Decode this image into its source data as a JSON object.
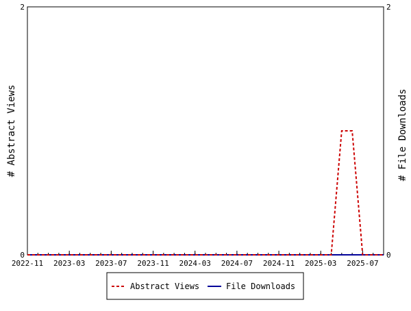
{
  "chart_data": {
    "type": "line",
    "x_axis": {
      "tick_labels": [
        "2022-11",
        "2023-03",
        "2023-07",
        "2023-11",
        "2024-03",
        "2024-07",
        "2024-11",
        "2025-03",
        "2025-07"
      ],
      "range": [
        "2022-11",
        "2025-09"
      ]
    },
    "y_left": {
      "label": "# Abstract Views",
      "range": [
        0,
        2
      ],
      "ticks": [
        "0",
        "2"
      ]
    },
    "y_right": {
      "label": "# File Downloads",
      "range": [
        0,
        2
      ],
      "ticks": [
        "0",
        "2"
      ]
    },
    "grid": false,
    "legend_placement": "bottom-center",
    "series": [
      {
        "name": "Abstract Views",
        "axis": "left",
        "style": "dashed",
        "color": "#cc0000",
        "x": [
          "2022-11",
          "2022-12",
          "2023-01",
          "2023-02",
          "2023-03",
          "2023-04",
          "2023-05",
          "2023-06",
          "2023-07",
          "2023-08",
          "2023-09",
          "2023-10",
          "2023-11",
          "2023-12",
          "2024-01",
          "2024-02",
          "2024-03",
          "2024-04",
          "2024-05",
          "2024-06",
          "2024-07",
          "2024-08",
          "2024-09",
          "2024-10",
          "2024-11",
          "2024-12",
          "2025-01",
          "2025-02",
          "2025-03",
          "2025-04",
          "2025-05",
          "2025-06",
          "2025-07",
          "2025-08",
          "2025-09"
        ],
        "y": [
          0,
          0,
          0,
          0,
          0,
          0,
          0,
          0,
          0,
          0,
          0,
          0,
          0,
          0,
          0,
          0,
          0,
          0,
          0,
          0,
          0,
          0,
          0,
          0,
          0,
          0,
          0,
          0,
          0,
          0,
          1,
          1,
          0,
          0,
          0
        ]
      },
      {
        "name": "File Downloads",
        "axis": "right",
        "style": "solid",
        "color": "#000099",
        "x": [
          "2022-11",
          "2022-12",
          "2023-01",
          "2023-02",
          "2023-03",
          "2023-04",
          "2023-05",
          "2023-06",
          "2023-07",
          "2023-08",
          "2023-09",
          "2023-10",
          "2023-11",
          "2023-12",
          "2024-01",
          "2024-02",
          "2024-03",
          "2024-04",
          "2024-05",
          "2024-06",
          "2024-07",
          "2024-08",
          "2024-09",
          "2024-10",
          "2024-11",
          "2024-12",
          "2025-01",
          "2025-02",
          "2025-03",
          "2025-04",
          "2025-05",
          "2025-06",
          "2025-07",
          "2025-08",
          "2025-09"
        ],
        "y": [
          0,
          0,
          0,
          0,
          0,
          0,
          0,
          0,
          0,
          0,
          0,
          0,
          0,
          0,
          0,
          0,
          0,
          0,
          0,
          0,
          0,
          0,
          0,
          0,
          0,
          0,
          0,
          0,
          0,
          0,
          0,
          0,
          0,
          0,
          0
        ]
      }
    ]
  }
}
